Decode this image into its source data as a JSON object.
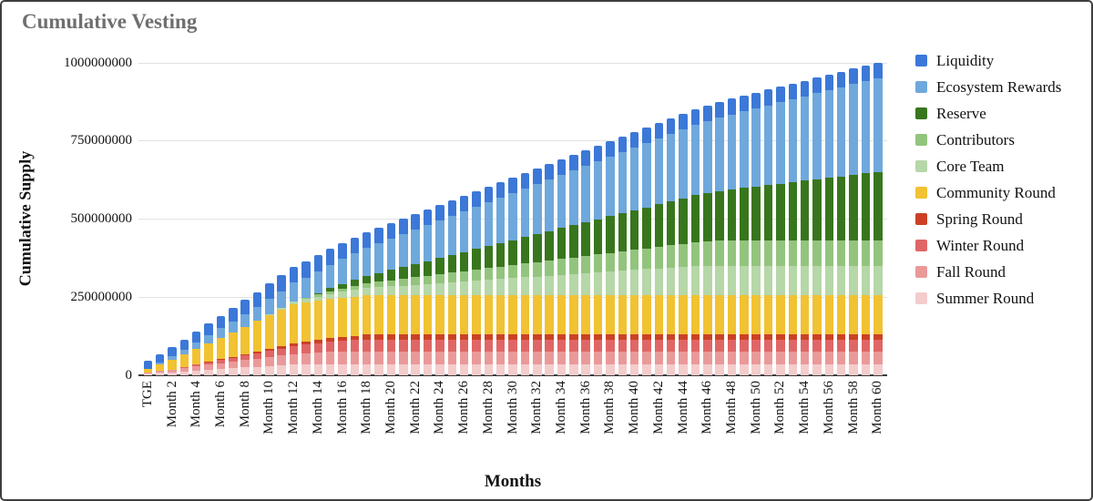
{
  "chart": {
    "title_color": "#6f6f6f",
    "axis_color": "#111111",
    "gridline_color": "#e2e2e2",
    "baseline_color": "#3c3c3c",
    "background": "#ffffff",
    "border_color": "#3f3f3f"
  },
  "chart_data": {
    "type": "bar",
    "stacked": true,
    "title": "Cumulative Vesting",
    "xlabel": "Months",
    "ylabel": "Cumulative Supply",
    "ylim": [
      0,
      1000000000
    ],
    "grid": "horizontal",
    "legend_position": "right",
    "n_bars": 61,
    "x_label_every": 2,
    "x_tick_labels": [
      "TGE",
      "Month 2",
      "Month 4",
      "Month 6",
      "Month 8",
      "Month 10",
      "Month 12",
      "Month 14",
      "Month 16",
      "Month 18",
      "Month 20",
      "Month 22",
      "Month 24",
      "Month 26",
      "Month 28",
      "Month 30",
      "Month 32",
      "Month 34",
      "Month 36",
      "Month 38",
      "Month 40",
      "Month 42",
      "Month 44",
      "Month 46",
      "Month 48",
      "Month 50",
      "Month 52",
      "Month 54",
      "Month 56",
      "Month 58",
      "Month 60"
    ],
    "y_ticks": [
      {
        "label": "0",
        "value": 0
      },
      {
        "label": "250000000",
        "value": 250000000
      },
      {
        "label": "500000000",
        "value": 500000000
      },
      {
        "label": "750000000",
        "value": 750000000
      },
      {
        "label": "1000000000",
        "value": 1000000000
      }
    ],
    "value_unit_multiplier": 1000000,
    "series_bottom_to_top": [
      {
        "key": "summer-round",
        "name": "Summer Round",
        "color": "#f4cccc",
        "values": [
          5,
          7.5,
          10,
          12.5,
          15,
          17.5,
          20,
          22.5,
          25,
          27.5,
          30,
          32.5,
          35,
          35,
          35,
          35,
          35,
          35,
          35,
          35,
          35,
          35,
          35,
          35,
          35,
          35,
          35,
          35,
          35,
          35,
          35,
          35,
          35,
          35,
          35,
          35,
          35,
          35,
          35,
          35,
          35,
          35,
          35,
          35,
          35,
          35,
          35,
          35,
          35,
          35,
          35,
          35,
          35,
          35,
          35,
          35,
          35,
          35,
          35,
          35,
          35
        ]
      },
      {
        "key": "fall-round",
        "name": "Fall Round",
        "color": "#ea9999",
        "values": [
          4,
          6.4,
          8.8,
          11.2,
          13.6,
          16,
          18.4,
          20.8,
          23.2,
          25.6,
          28,
          30.4,
          32.8,
          35.2,
          37.6,
          40,
          40,
          40,
          40,
          40,
          40,
          40,
          40,
          40,
          40,
          40,
          40,
          40,
          40,
          40,
          40,
          40,
          40,
          40,
          40,
          40,
          40,
          40,
          40,
          40,
          40,
          40,
          40,
          40,
          40,
          40,
          40,
          40,
          40,
          40,
          40,
          40,
          40,
          40,
          40,
          40,
          40,
          40,
          40,
          40,
          40
        ]
      },
      {
        "key": "winter-round",
        "name": "Winter Round",
        "color": "#e06666",
        "values": [
          0,
          0,
          0,
          2.5,
          5,
          7.5,
          10,
          12.5,
          15,
          17.5,
          20,
          22.5,
          25,
          27.5,
          30,
          32.5,
          35,
          37.5,
          40,
          40,
          40,
          40,
          40,
          40,
          40,
          40,
          40,
          40,
          40,
          40,
          40,
          40,
          40,
          40,
          40,
          40,
          40,
          40,
          40,
          40,
          40,
          40,
          40,
          40,
          40,
          40,
          40,
          40,
          40,
          40,
          40,
          40,
          40,
          40,
          40,
          40,
          40,
          40,
          40,
          40,
          40
        ]
      },
      {
        "key": "spring-round",
        "name": "Spring Round",
        "color": "#cc4125",
        "values": [
          0,
          0,
          0,
          0,
          1,
          2,
          3,
          4,
          5,
          6,
          7,
          8,
          9,
          10,
          11,
          12,
          13,
          14,
          15,
          15,
          15,
          15,
          15,
          15,
          15,
          15,
          15,
          15,
          15,
          15,
          15,
          15,
          15,
          15,
          15,
          15,
          15,
          15,
          15,
          15,
          15,
          15,
          15,
          15,
          15,
          15,
          15,
          15,
          15,
          15,
          15,
          15,
          15,
          15,
          15,
          15,
          15,
          15,
          15,
          15,
          15
        ]
      },
      {
        "key": "community-round",
        "name": "Community Round",
        "color": "#f1c232",
        "values": [
          12.5,
          21.88,
          31.25,
          40.63,
          50,
          59.38,
          68.75,
          78.13,
          87.5,
          96.88,
          106.25,
          115.63,
          125,
          125,
          125,
          125,
          125,
          125,
          125,
          125,
          125,
          125,
          125,
          125,
          125,
          125,
          125,
          125,
          125,
          125,
          125,
          125,
          125,
          125,
          125,
          125,
          125,
          125,
          125,
          125,
          125,
          125,
          125,
          125,
          125,
          125,
          125,
          125,
          125,
          125,
          125,
          125,
          125,
          125,
          125,
          125,
          125,
          125,
          125,
          125,
          125
        ]
      },
      {
        "key": "core-team",
        "name": "Core Team",
        "color": "#b6d7a8",
        "values": [
          0,
          0,
          0,
          0,
          0,
          0,
          0,
          0,
          0,
          0,
          2.64,
          5.28,
          7.92,
          10.56,
          13.19,
          15.83,
          18.47,
          21.11,
          23.75,
          26.39,
          29.03,
          31.67,
          34.31,
          36.94,
          39.58,
          42.22,
          44.86,
          47.5,
          50.14,
          52.78,
          55.42,
          58.06,
          60.69,
          63.33,
          65.97,
          68.61,
          71.25,
          73.89,
          76.53,
          79.17,
          81.81,
          84.44,
          87.08,
          89.72,
          92.36,
          95,
          95,
          95,
          95,
          95,
          95,
          95,
          95,
          95,
          95,
          95,
          95,
          95,
          95,
          95,
          95
        ]
      },
      {
        "key": "contributors",
        "name": "Contributors",
        "color": "#93c47d",
        "values": [
          0,
          0,
          0,
          0,
          0,
          0,
          0,
          0,
          0,
          0,
          0,
          0,
          2.22,
          4.44,
          6.67,
          8.89,
          11.11,
          13.33,
          15.56,
          17.78,
          20,
          22.22,
          24.44,
          26.67,
          28.89,
          31.11,
          33.33,
          35.56,
          37.78,
          40,
          42.22,
          44.44,
          46.67,
          48.89,
          51.11,
          53.33,
          55.56,
          57.78,
          60,
          62.22,
          64.44,
          66.67,
          68.89,
          71.11,
          73.33,
          75.56,
          77.78,
          80,
          80,
          80,
          80,
          80,
          80,
          80,
          80,
          80,
          80,
          80,
          80,
          80,
          80
        ]
      },
      {
        "key": "reserve",
        "name": "Reserve",
        "color": "#38761d",
        "values": [
          0,
          0,
          0,
          0,
          0,
          0,
          0,
          0,
          0,
          0,
          0,
          0,
          0,
          0,
          4.68,
          9.36,
          14.04,
          18.72,
          23.4,
          28.09,
          32.77,
          37.45,
          42.13,
          46.81,
          51.49,
          56.17,
          60.85,
          65.53,
          70.21,
          74.89,
          79.57,
          84.26,
          88.94,
          93.62,
          98.3,
          102.98,
          107.66,
          112.34,
          117.02,
          121.7,
          126.38,
          131.06,
          135.74,
          140.43,
          145.11,
          149.79,
          154.47,
          159.15,
          163.83,
          168.51,
          173.19,
          177.87,
          182.55,
          187.23,
          191.91,
          196.6,
          201.28,
          205.96,
          210.64,
          215.32,
          220
        ]
      },
      {
        "key": "ecosystem-rewards",
        "name": "Ecosystem Rewards",
        "color": "#6fa8dc",
        "values": [
          0,
          5,
          10,
          15,
          20,
          25,
          30,
          35,
          40,
          45,
          50,
          55,
          60,
          65,
          70,
          75,
          80,
          85,
          90,
          95,
          100,
          105,
          110,
          115,
          120,
          125,
          130,
          135,
          140,
          145,
          150,
          155,
          160,
          165,
          170,
          175,
          180,
          185,
          190,
          195,
          200,
          205,
          210,
          215,
          220,
          225,
          230,
          235,
          240,
          245,
          250,
          255,
          260,
          265,
          270,
          275,
          280,
          285,
          290,
          295,
          300
        ]
      },
      {
        "key": "liquidity",
        "name": "Liquidity",
        "color": "#3c78d8",
        "values": [
          25,
          27.5,
          30,
          32.5,
          35,
          37.5,
          40,
          42.5,
          45,
          47.5,
          50,
          50,
          50,
          50,
          50,
          50,
          50,
          50,
          50,
          50,
          50,
          50,
          50,
          50,
          50,
          50,
          50,
          50,
          50,
          50,
          50,
          50,
          50,
          50,
          50,
          50,
          50,
          50,
          50,
          50,
          50,
          50,
          50,
          50,
          50,
          50,
          50,
          50,
          50,
          50,
          50,
          50,
          50,
          50,
          50,
          50,
          50,
          50,
          50,
          50,
          50
        ]
      }
    ],
    "legend_top_to_bottom": [
      "Liquidity",
      "Ecosystem Rewards",
      "Reserve",
      "Contributors",
      "Core Team",
      "Community Round",
      "Spring Round",
      "Winter Round",
      "Fall Round",
      "Summer Round"
    ]
  }
}
